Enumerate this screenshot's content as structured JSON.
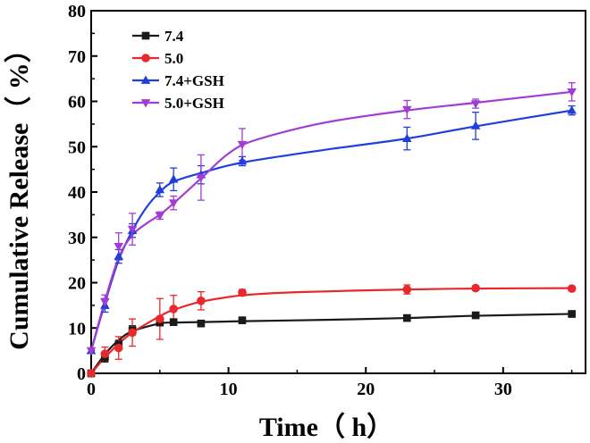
{
  "chart_data": {
    "type": "line",
    "title": "",
    "xlabel": "Time（ h）",
    "ylabel": "Cumulative Release（ %）",
    "xlim": [
      0,
      36
    ],
    "ylim": [
      0,
      80
    ],
    "xticks": [
      0,
      10,
      20,
      30
    ],
    "yticks": [
      0,
      10,
      20,
      30,
      40,
      50,
      60,
      70,
      80
    ],
    "grid": false,
    "legend_position": "top-left",
    "series": [
      {
        "name": "7.4",
        "color": "#1a1a1a",
        "marker": "square",
        "x": [
          0,
          1,
          2,
          3,
          5,
          6,
          8,
          11,
          23,
          28,
          35
        ],
        "y": [
          0,
          3.5,
          6.3,
          9.5,
          11.2,
          11.3,
          11.0,
          11.7,
          12.2,
          12.8,
          13.1
        ],
        "err": [
          0,
          1.0,
          1.0,
          1.0,
          0.5,
          0.5,
          0.5,
          0.5,
          0.5,
          0.5,
          0.5
        ],
        "curve": [
          [
            0,
            0
          ],
          [
            1,
            4.2
          ],
          [
            2,
            7.3
          ],
          [
            3,
            9.3
          ],
          [
            5,
            11.0
          ],
          [
            6,
            11.2
          ],
          [
            8,
            11.3
          ],
          [
            11,
            11.5
          ],
          [
            17,
            11.8
          ],
          [
            23,
            12.2
          ],
          [
            28,
            12.7
          ],
          [
            35,
            13.1
          ]
        ]
      },
      {
        "name": "5.0",
        "color": "#e8282a",
        "marker": "circle",
        "x": [
          0,
          1,
          2,
          3,
          5,
          6,
          8,
          11,
          23,
          28,
          35
        ],
        "y": [
          0,
          4.3,
          5.6,
          9.0,
          12.0,
          14.2,
          16.0,
          17.8,
          18.5,
          18.8,
          18.7
        ],
        "err": [
          0,
          1.5,
          2.5,
          3.0,
          4.5,
          3.0,
          2.0,
          0.7,
          1.0,
          0.5,
          0.5
        ],
        "curve": [
          [
            0,
            0
          ],
          [
            1,
            3.5
          ],
          [
            2,
            6.5
          ],
          [
            3,
            9.0
          ],
          [
            5,
            12.6
          ],
          [
            6,
            14.0
          ],
          [
            8,
            15.8
          ],
          [
            11,
            17.2
          ],
          [
            15,
            17.9
          ],
          [
            23,
            18.5
          ],
          [
            28,
            18.7
          ],
          [
            35,
            18.8
          ]
        ]
      },
      {
        "name": "7.4+GSH",
        "color": "#1f3fdc",
        "marker": "triangle-up",
        "x": [
          0,
          1,
          2,
          3,
          5,
          6,
          8,
          11,
          23,
          28,
          35
        ],
        "y": [
          5,
          15.0,
          25.8,
          31.5,
          40.5,
          42.8,
          43.8,
          46.8,
          51.8,
          54.6,
          58.0
        ],
        "err": [
          0,
          1.5,
          1.5,
          1.5,
          1.5,
          2.5,
          2.0,
          1.0,
          2.5,
          3.0,
          1.0
        ],
        "curve": [
          [
            0,
            5
          ],
          [
            1,
            15.5
          ],
          [
            2,
            25.0
          ],
          [
            3,
            31.5
          ],
          [
            4,
            36.5
          ],
          [
            5,
            40.0
          ],
          [
            6,
            42.3
          ],
          [
            8,
            44.2
          ],
          [
            11,
            46.5
          ],
          [
            17,
            49.3
          ],
          [
            23,
            51.8
          ],
          [
            28,
            54.5
          ],
          [
            35,
            58.0
          ]
        ]
      },
      {
        "name": "5.0+GSH",
        "color": "#a23cd4",
        "marker": "triangle-down",
        "x": [
          0,
          1,
          2,
          3,
          5,
          6,
          8,
          11,
          23,
          28,
          35
        ],
        "y": [
          5,
          15.8,
          28.0,
          31.8,
          34.8,
          37.6,
          43.2,
          50.5,
          58.2,
          59.5,
          62.1
        ],
        "err": [
          0,
          1.5,
          3.0,
          3.5,
          0.8,
          1.5,
          5.0,
          3.5,
          2.0,
          1.0,
          2.0
        ],
        "curve": [
          [
            0,
            5
          ],
          [
            1,
            16.0
          ],
          [
            2,
            25.5
          ],
          [
            3,
            30.5
          ],
          [
            4,
            33.0
          ],
          [
            5,
            35.0
          ],
          [
            6,
            37.5
          ],
          [
            8,
            43.0
          ],
          [
            10,
            48.5
          ],
          [
            12,
            51.5
          ],
          [
            17,
            55.3
          ],
          [
            23,
            58.0
          ],
          [
            28,
            59.7
          ],
          [
            35,
            62.1
          ]
        ]
      }
    ]
  }
}
